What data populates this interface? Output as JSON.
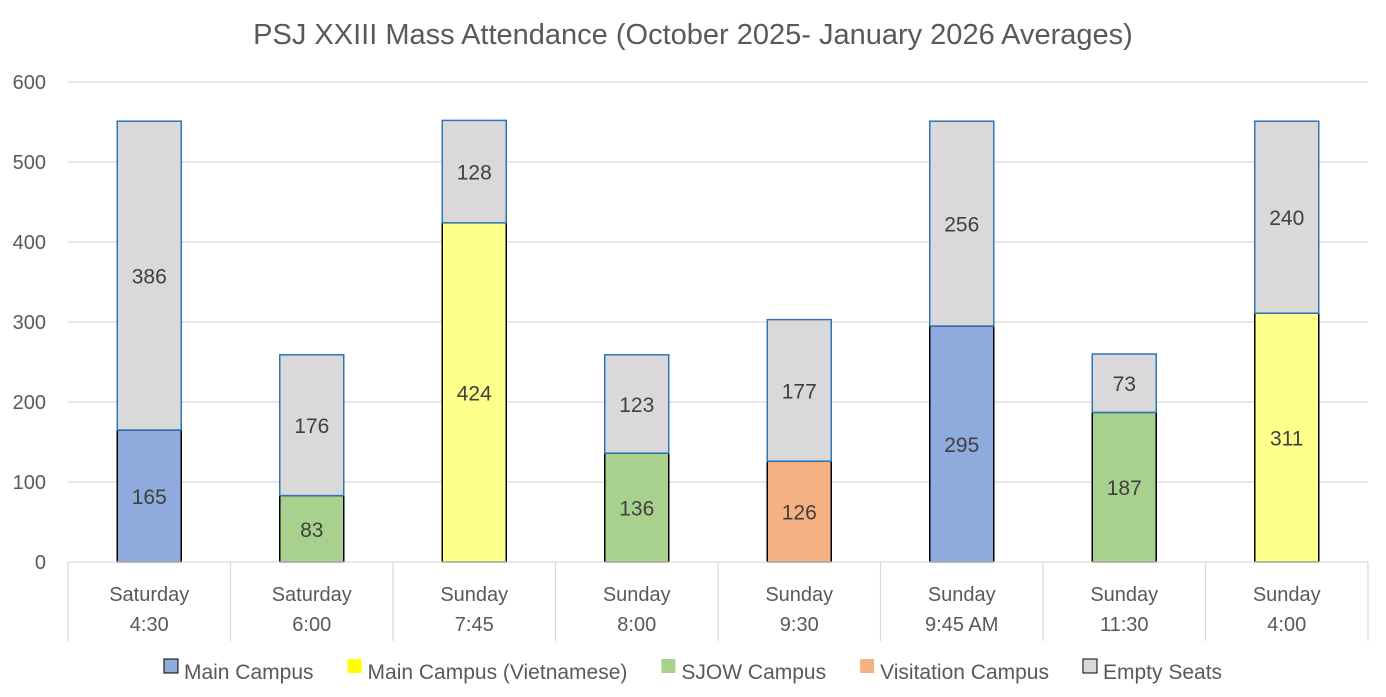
{
  "chart_data": {
    "type": "bar",
    "stacked": true,
    "title": "PSJ XXIII Mass Attendance (October 2025- January 2026 Averages)",
    "xlabel": "",
    "ylabel": "",
    "ylim": [
      0,
      600
    ],
    "yticks": [
      0,
      100,
      200,
      300,
      400,
      500,
      600
    ],
    "grid": true,
    "legend_position": "bottom",
    "categories": [
      [
        "Saturday",
        "4:30"
      ],
      [
        "Saturday",
        "6:00"
      ],
      [
        "Sunday",
        "7:45"
      ],
      [
        "Sunday",
        "8:00"
      ],
      [
        "Sunday",
        "9:30"
      ],
      [
        "Sunday",
        "9:45 AM"
      ],
      [
        "Sunday",
        "11:30"
      ],
      [
        "Sunday",
        "4:00"
      ]
    ],
    "series": [
      {
        "name": "Main Campus",
        "color": "#8faadc",
        "border": "#000000",
        "values": [
          165,
          null,
          null,
          null,
          null,
          295,
          null,
          null
        ]
      },
      {
        "name": "Main Campus (Vietnamese)",
        "color": "#ffff8c",
        "legend_color": "#ffff00",
        "border": "#000000",
        "values": [
          null,
          null,
          424,
          null,
          null,
          null,
          null,
          311
        ]
      },
      {
        "name": "SJOW Campus",
        "color": "#a9d18e",
        "border": "#000000",
        "values": [
          null,
          83,
          null,
          136,
          null,
          null,
          187,
          null
        ]
      },
      {
        "name": "Visitation Campus",
        "color": "#f4b183",
        "border": "#000000",
        "values": [
          null,
          null,
          null,
          null,
          126,
          null,
          null,
          null
        ]
      },
      {
        "name": "Empty Seats",
        "color": "#d9d9d9",
        "border": "#2e75b6",
        "values": [
          386,
          176,
          128,
          123,
          177,
          256,
          73,
          240
        ]
      }
    ]
  }
}
